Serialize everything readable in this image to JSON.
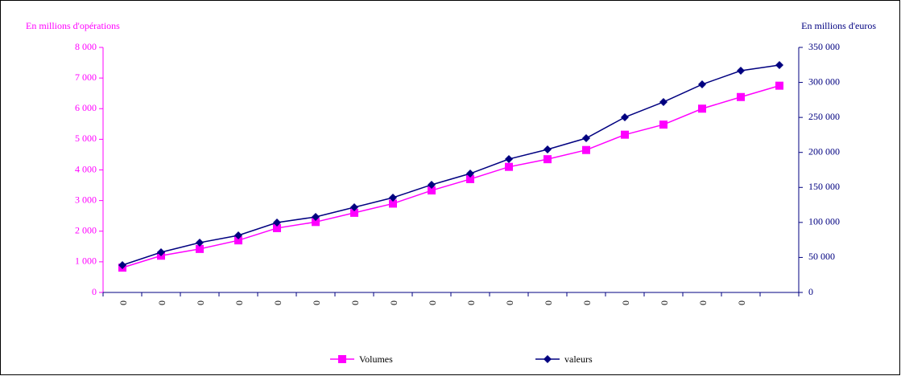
{
  "chart_data": {
    "type": "line",
    "y_label": "En millions d'opérations",
    "y2_label": "En millions d'euros",
    "categories": [
      "0",
      "0",
      "0",
      "0",
      "0",
      "0",
      "0",
      "0",
      "0",
      "0",
      "0",
      "0",
      "0",
      "0",
      "0",
      "0",
      "0",
      null
    ],
    "series": [
      {
        "name": "Volumes",
        "color": "#ff00ff",
        "marker": "square",
        "axis": "y",
        "values": [
          810,
          1200,
          1420,
          1700,
          2100,
          2300,
          2600,
          2900,
          3330,
          3700,
          4100,
          4350,
          4650,
          5150,
          5480,
          6000,
          6380,
          6750
        ]
      },
      {
        "name": "valeurs",
        "color": "#000080",
        "marker": "diamond",
        "axis": "y2",
        "values": [
          39000,
          57400,
          71100,
          81500,
          99800,
          107900,
          121600,
          135400,
          153800,
          169800,
          190500,
          204300,
          220300,
          250200,
          272000,
          297200,
          316700,
          324700
        ]
      }
    ],
    "ylim": [
      0,
      8000
    ],
    "yticks": [
      0,
      {
        "value": 1000,
        "label": "1 000"
      },
      {
        "value": 2000,
        "label": "2 000"
      },
      {
        "value": 3000,
        "label": "3 000"
      },
      {
        "value": 4000,
        "label": "4 000"
      },
      {
        "value": 5000,
        "label": "5 000"
      },
      {
        "value": 6000,
        "label": "6 000"
      },
      {
        "value": 7000,
        "label": "7 000"
      },
      {
        "value": 8000,
        "label": "8 000"
      }
    ],
    "y2lim": [
      0,
      350000
    ],
    "y2ticks": [
      0,
      {
        "value": 50000,
        "label": "50 000"
      },
      {
        "value": 100000,
        "label": "100 000"
      },
      {
        "value": 150000,
        "label": "150 000"
      },
      {
        "value": 200000,
        "label": "200 000"
      },
      {
        "value": 250000,
        "label": "250 000"
      },
      {
        "value": 300000,
        "label": "300 000"
      },
      {
        "value": 350000,
        "label": "350 000"
      }
    ],
    "legend": "bottom"
  }
}
